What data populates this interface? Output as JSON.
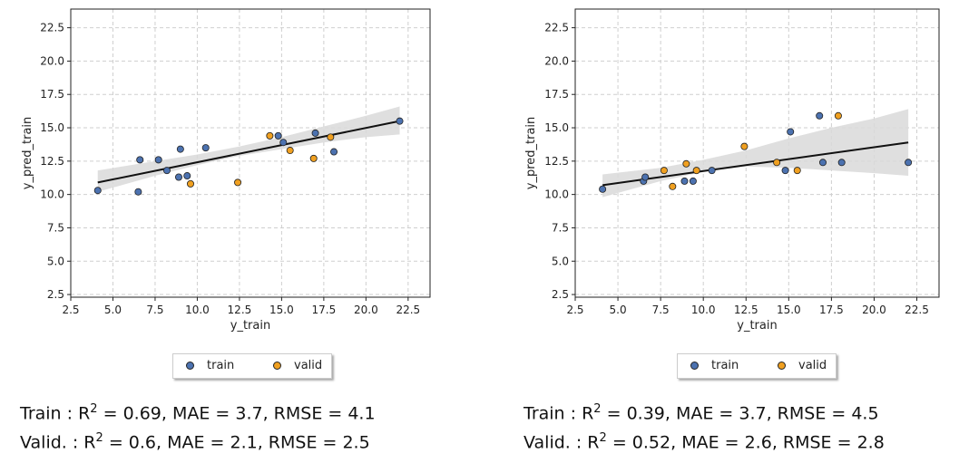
{
  "chart_data": [
    {
      "type": "scatter",
      "xlabel": "y_train",
      "ylabel": "y_pred_train",
      "xlim": [
        2.5,
        23.8
      ],
      "ylim": [
        2.3,
        23.9
      ],
      "xticks": [
        "2.5",
        "5.0",
        "7.5",
        "10.0",
        "12.5",
        "15.0",
        "17.5",
        "20.0",
        "22.5"
      ],
      "yticks": [
        "2.5",
        "5.0",
        "7.5",
        "10.0",
        "12.5",
        "15.0",
        "17.5",
        "20.0",
        "22.5"
      ],
      "grid": true,
      "legend": {
        "placement": "bottom-center",
        "items": [
          "train",
          "valid"
        ]
      },
      "colors": {
        "train": "#4c72b0",
        "valid": "#f0a020",
        "fit": "#111111",
        "band": "#d9d9d9"
      },
      "series": [
        {
          "name": "train",
          "points": [
            [
              4.1,
              10.3
            ],
            [
              6.5,
              10.2
            ],
            [
              6.6,
              12.6
            ],
            [
              7.7,
              12.6
            ],
            [
              8.2,
              11.8
            ],
            [
              8.9,
              11.3
            ],
            [
              9.0,
              13.4
            ],
            [
              9.4,
              11.4
            ],
            [
              10.5,
              13.5
            ],
            [
              14.8,
              14.4
            ],
            [
              15.1,
              13.9
            ],
            [
              17.0,
              14.6
            ],
            [
              18.1,
              13.2
            ],
            [
              22.0,
              15.5
            ]
          ]
        },
        {
          "name": "valid",
          "points": [
            [
              9.6,
              10.8
            ],
            [
              12.4,
              10.9
            ],
            [
              14.3,
              14.4
            ],
            [
              15.5,
              13.3
            ],
            [
              16.9,
              12.7
            ],
            [
              17.9,
              14.3
            ]
          ]
        }
      ],
      "fit": {
        "x": [
          4.1,
          22.0
        ],
        "y": [
          10.9,
          15.5
        ]
      },
      "band": {
        "x": [
          4.1,
          7.5,
          10.0,
          12.5,
          15.0,
          17.5,
          20.0,
          22.0
        ],
        "lower": [
          10.2,
          11.4,
          12.2,
          12.9,
          13.4,
          13.9,
          14.3,
          14.5
        ],
        "upper": [
          11.8,
          12.5,
          13.0,
          13.6,
          14.3,
          15.1,
          15.9,
          16.6
        ]
      },
      "metrics": {
        "train": {
          "label": "Train :",
          "r2": "0.69",
          "mae": "3.7",
          "rmse": "4.1"
        },
        "valid": {
          "label": "Valid. :",
          "r2": "0.6",
          "mae": "2.1",
          "rmse": "2.5"
        }
      }
    },
    {
      "type": "scatter",
      "xlabel": "y_train",
      "ylabel": "y_pred_train",
      "xlim": [
        2.5,
        23.8
      ],
      "ylim": [
        2.3,
        23.9
      ],
      "xticks": [
        "2.5",
        "5.0",
        "7.5",
        "10.0",
        "12.5",
        "15.0",
        "17.5",
        "20.0",
        "22.5"
      ],
      "yticks": [
        "2.5",
        "5.0",
        "7.5",
        "10.0",
        "12.5",
        "15.0",
        "17.5",
        "20.0",
        "22.5"
      ],
      "grid": true,
      "legend": {
        "placement": "bottom-center",
        "items": [
          "train",
          "valid"
        ]
      },
      "colors": {
        "train": "#4c72b0",
        "valid": "#f0a020",
        "fit": "#111111",
        "band": "#d9d9d9"
      },
      "series": [
        {
          "name": "train",
          "points": [
            [
              4.1,
              10.4
            ],
            [
              6.5,
              11.0
            ],
            [
              6.6,
              11.3
            ],
            [
              8.9,
              11.0
            ],
            [
              9.4,
              11.0
            ],
            [
              10.5,
              11.8
            ],
            [
              14.8,
              11.8
            ],
            [
              15.1,
              14.7
            ],
            [
              16.8,
              15.9
            ],
            [
              17.0,
              12.4
            ],
            [
              18.1,
              12.4
            ],
            [
              22.0,
              12.4
            ]
          ]
        },
        {
          "name": "valid",
          "points": [
            [
              7.7,
              11.8
            ],
            [
              8.2,
              10.6
            ],
            [
              9.0,
              12.3
            ],
            [
              9.6,
              11.8
            ],
            [
              12.4,
              13.6
            ],
            [
              14.3,
              12.4
            ],
            [
              15.5,
              11.8
            ],
            [
              17.9,
              15.9
            ]
          ]
        }
      ],
      "fit": {
        "x": [
          4.1,
          22.0
        ],
        "y": [
          10.7,
          13.9
        ]
      },
      "band": {
        "x": [
          4.1,
          7.5,
          10.0,
          12.5,
          15.0,
          17.5,
          20.0,
          22.0
        ],
        "lower": [
          9.8,
          11.0,
          11.7,
          12.1,
          12.0,
          11.8,
          11.6,
          11.4
        ],
        "upper": [
          11.5,
          12.0,
          12.6,
          13.3,
          14.2,
          15.0,
          15.7,
          16.4
        ]
      },
      "metrics": {
        "train": {
          "label": "Train :",
          "r2": "0.39",
          "mae": "3.7",
          "rmse": "4.5"
        },
        "valid": {
          "label": "Valid. :",
          "r2": "0.52",
          "mae": "2.6",
          "rmse": "2.8"
        }
      }
    }
  ]
}
